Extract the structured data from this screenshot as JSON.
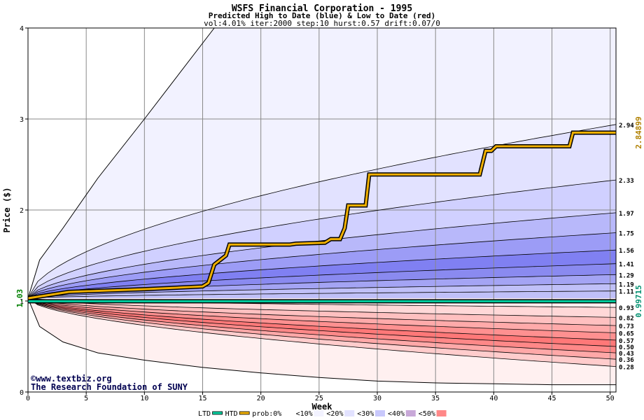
{
  "chart_data": {
    "type": "area",
    "title": "WSFS Financial Corporation - 1995",
    "subtitle": "Predicted High to Date (blue) &  Low to Date (red)",
    "params": "vol:4.01% iter:2000 step:10 hurst:0.57 drift:0.07/0",
    "xlabel": "Week",
    "ylabel": "Price ($)",
    "xlim": [
      0,
      50.5
    ],
    "ylim": [
      0,
      4
    ],
    "x_ticks": [
      0,
      5,
      10,
      15,
      20,
      25,
      30,
      35,
      40,
      45,
      50
    ],
    "y_ticks": [
      0,
      1,
      2,
      3,
      4
    ],
    "grid": true,
    "start_price": 1.03,
    "high_band_endpoints": [
      2.94,
      2.33,
      1.97,
      1.75,
      1.56,
      1.41,
      1.29,
      1.19,
      1.11
    ],
    "low_band_endpoints": [
      0.93,
      0.82,
      0.73,
      0.65,
      0.57,
      0.5,
      0.43,
      0.36,
      0.28
    ],
    "outer_high_line": {
      "x": [
        0,
        1,
        3,
        6,
        10,
        16
      ],
      "y": [
        1.03,
        1.45,
        1.8,
        2.35,
        3.0,
        4.0
      ]
    },
    "outer_low_line": {
      "x": [
        0,
        1,
        3,
        6,
        10,
        15,
        20,
        25,
        30,
        35,
        40,
        45,
        50.5
      ],
      "y": [
        1.03,
        0.72,
        0.55,
        0.43,
        0.35,
        0.27,
        0.21,
        0.16,
        0.12,
        0.1,
        0.09,
        0.08,
        0.08
      ]
    },
    "actual_htd": {
      "name": "HTD",
      "color": "#f0b000",
      "x": [
        0,
        1,
        3.5,
        10,
        15,
        15.5,
        16,
        17,
        17.3,
        22.5,
        23,
        25.5,
        26,
        26.8,
        27.2,
        27.5,
        29,
        29.3,
        38.8,
        39.3,
        39.8,
        40.2,
        46.5,
        46.8,
        50.5
      ],
      "y": [
        1.03,
        1.05,
        1.1,
        1.13,
        1.16,
        1.2,
        1.4,
        1.5,
        1.62,
        1.62,
        1.63,
        1.64,
        1.68,
        1.68,
        1.8,
        2.05,
        2.05,
        2.39,
        2.39,
        2.65,
        2.65,
        2.7,
        2.7,
        2.85,
        2.85
      ]
    },
    "actual_ltd": {
      "name": "LTD",
      "color": "#00d0a0",
      "x": [
        0,
        50.5
      ],
      "y": [
        0.99715,
        0.99715
      ]
    },
    "right_labels": {
      "high": "2.84899",
      "low": "0.99715",
      "start": "1.03"
    },
    "fill_colors": {
      "high": [
        "#f2f2ff",
        "#e2e2ff",
        "#d0d0ff",
        "#b8b8fa",
        "#9c9cf6",
        "#8080f2",
        "#8a8af0",
        "#a4a4f4",
        "#c0c0f8"
      ],
      "low": [
        "#fff0f0",
        "#ffd8d8",
        "#ffc0c0",
        "#ffaaaa",
        "#ff9090",
        "#ff7878",
        "#ff8888",
        "#ffa8a8",
        "#ffcccc"
      ]
    },
    "watermark": [
      "©www.textbiz.org",
      "The Research Foundation of SUNY"
    ],
    "legend": {
      "items": [
        "LTD",
        "HTD",
        "prob:0%",
        "<10%",
        "<20%",
        "<30%",
        "<40%",
        "<50%"
      ],
      "colors": [
        "#00d0a0",
        "#f0b000",
        "#ffffff",
        "#f2f2ff",
        "#e2e2ff",
        "#c8c8fc",
        "#c8a8d8",
        "#ff8888"
      ],
      "placement": "bottom"
    }
  }
}
